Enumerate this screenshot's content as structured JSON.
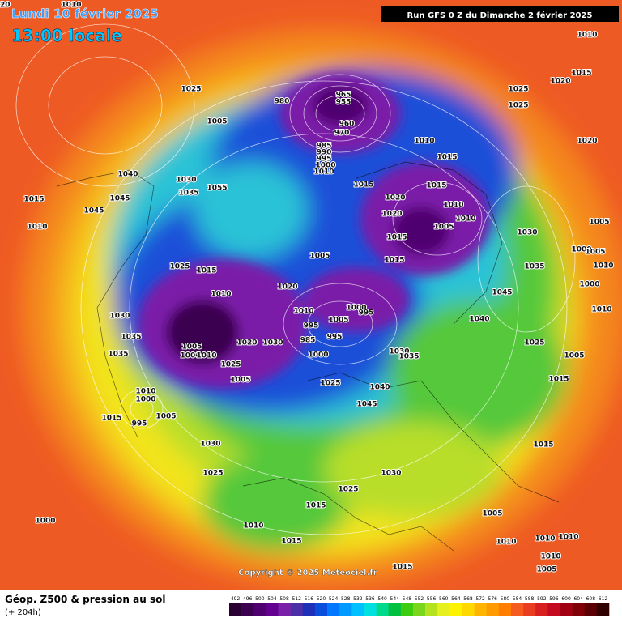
{
  "header": {
    "valid_date": "Lundi 10 février 2025",
    "local_time": "13:00 locale",
    "run": "Run GFS 0 Z du Dimanche 2 février 2025"
  },
  "footer": {
    "product": "Géop. Z500 & pression au sol",
    "lead": "(+ 204h)",
    "copyright": "Copyright © 2025 Meteociel.fr"
  },
  "color_scale": {
    "labels": [
      492,
      496,
      500,
      504,
      508,
      512,
      516,
      520,
      524,
      528,
      532,
      536,
      540,
      544,
      548,
      552,
      556,
      560,
      564,
      568,
      572,
      576,
      580,
      584,
      588,
      592,
      596,
      600,
      604,
      608,
      612
    ],
    "colors": [
      "#2b0033",
      "#3c0050",
      "#4f0070",
      "#63008f",
      "#7a1fa8",
      "#4b2fa6",
      "#1e2fb8",
      "#0a4fdc",
      "#0077ff",
      "#0099ff",
      "#00c0ff",
      "#00e0e0",
      "#00d88a",
      "#00c040",
      "#3ccc10",
      "#7ad61a",
      "#b4e21e",
      "#e6f01e",
      "#fff200",
      "#ffd800",
      "#ffb400",
      "#ff9a00",
      "#ff7e00",
      "#f55a1e",
      "#ea3c1e",
      "#d8201e",
      "#c40a1e",
      "#a00010",
      "#800008",
      "#5a0004",
      "#300000"
    ]
  },
  "pressure_labels": [
    1010,
    1025,
    1005,
    980,
    965,
    955,
    960,
    970,
    985,
    990,
    995,
    1000,
    1010,
    1040,
    1045,
    1045,
    1015,
    1010,
    1030,
    1035,
    1055,
    1015,
    1010,
    1015,
    1020,
    1015,
    1010,
    1020,
    1010,
    1005,
    1015,
    1015,
    1030,
    1035,
    1025,
    1025,
    1020,
    1015,
    1010,
    1020,
    1005,
    1000,
    1005,
    1010,
    1000,
    1010,
    1025,
    1015,
    1010,
    1005,
    1020,
    1010,
    1000,
    995,
    1005,
    995,
    985,
    995,
    1000,
    1030,
    1035,
    1035,
    1005,
    1000,
    1010,
    1020,
    1030,
    1025,
    1005,
    1030,
    1035,
    1045,
    1040,
    1025,
    1005,
    1015,
    1025,
    1040,
    1045,
    1010,
    1000,
    1015,
    1005,
    995,
    1030,
    1025,
    1030,
    1025,
    1015,
    1005,
    1015,
    1010,
    1015,
    1010,
    1010,
    1010,
    1010,
    1005,
    1000,
    1015,
    1020
  ]
}
